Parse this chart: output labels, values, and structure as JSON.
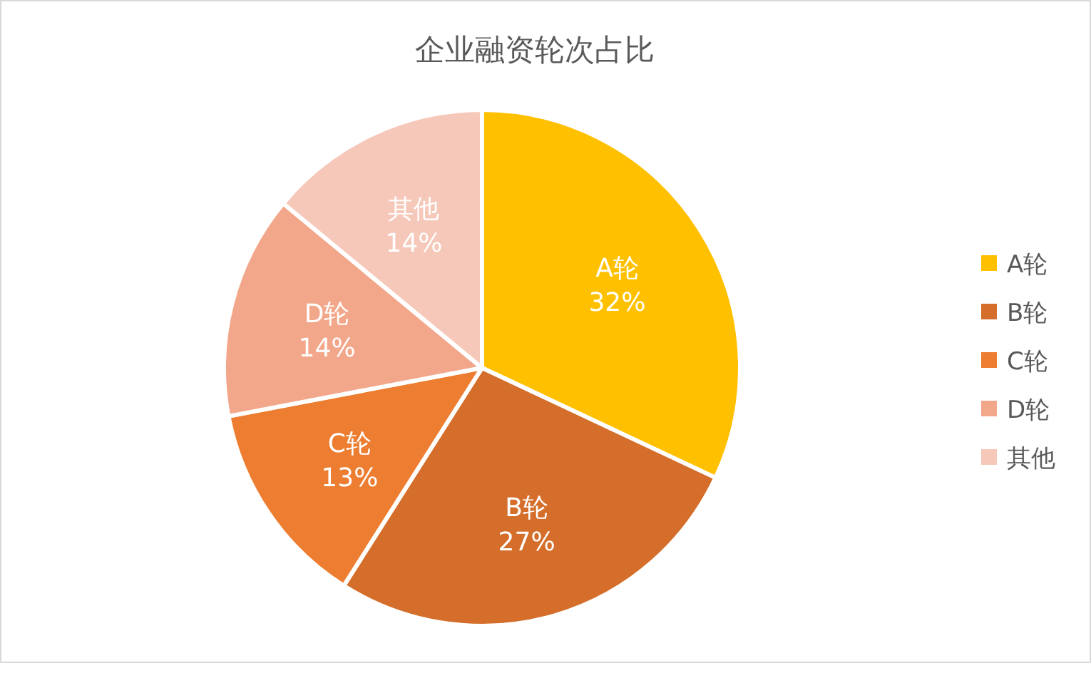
{
  "chart_data": {
    "type": "pie",
    "title": "企业融资轮次占比",
    "categories": [
      "A轮",
      "B轮",
      "C轮",
      "D轮",
      "其他"
    ],
    "values": [
      32,
      27,
      13,
      14,
      14
    ],
    "colors": [
      "#ffc000",
      "#d46e2a",
      "#ed7d31",
      "#f3a78a",
      "#f6c8b9"
    ],
    "value_labels": [
      "32%",
      "27%",
      "13%",
      "14%",
      "14%"
    ],
    "legend": "right"
  }
}
